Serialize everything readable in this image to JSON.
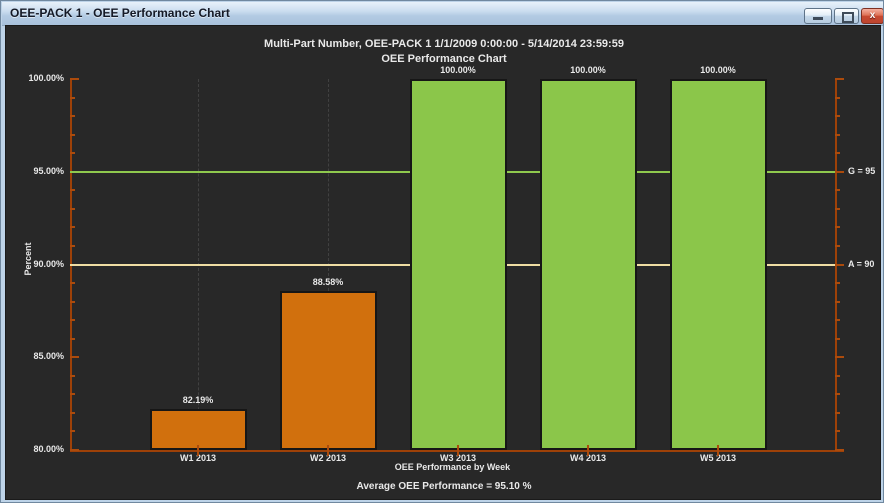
{
  "window": {
    "title": "OEE-PACK 1 - OEE Performance Chart",
    "controls": {
      "minimize": "minimize-icon",
      "maximize": "maximize-icon",
      "close": "close-icon",
      "close_glyph": "x"
    }
  },
  "colors": {
    "client_background": "#282828",
    "axis": "#9E4108",
    "tick": "#AC4B0C",
    "bar_orange": "#D1700D",
    "bar_green": "#8BC64A",
    "goal_line": "#8FC94E",
    "alarm_line": "#EFDDA3",
    "text": "#E9E9E9",
    "titlebar": "#BDD3E8"
  },
  "chart_data": {
    "type": "bar",
    "title": "Multi-Part Number, OEE-PACK 1  1/1/2009 0:00:00 - 5/14/2014 23:59:59",
    "subtitle": "OEE Performance Chart",
    "xlabel": "OEE Performance by Week",
    "ylabel": "Percent",
    "footer": "Average OEE Performance = 95.10 %",
    "categories": [
      "W1 2013",
      "W2 2013",
      "W3 2013",
      "W4 2013",
      "W5 2013"
    ],
    "values": [
      82.19,
      88.58,
      100.0,
      100.0,
      100.0
    ],
    "value_labels": [
      "82.19%",
      "88.58%",
      "100.00%",
      "100.00%",
      "100.00%"
    ],
    "bar_colors": [
      "#D1700D",
      "#D1700D",
      "#8BC64A",
      "#8BC64A",
      "#8BC64A"
    ],
    "ylim": [
      80,
      100
    ],
    "ytick_step": 5,
    "ytick_minor_step": 1,
    "yticks": [
      {
        "value": 100,
        "label": "100.00%"
      },
      {
        "value": 95,
        "label": "95.00%"
      },
      {
        "value": 90,
        "label": "90.00%"
      },
      {
        "value": 85,
        "label": "85.00%"
      },
      {
        "value": 80,
        "label": "80.00%"
      }
    ],
    "reference_lines": [
      {
        "value": 95,
        "label": "G = 95",
        "color": "#8FC94E"
      },
      {
        "value": 90,
        "label": "A = 90",
        "color": "#EFDDA3"
      }
    ],
    "grid": "vertical-dashed-at-bar-centers",
    "legend": "none"
  }
}
